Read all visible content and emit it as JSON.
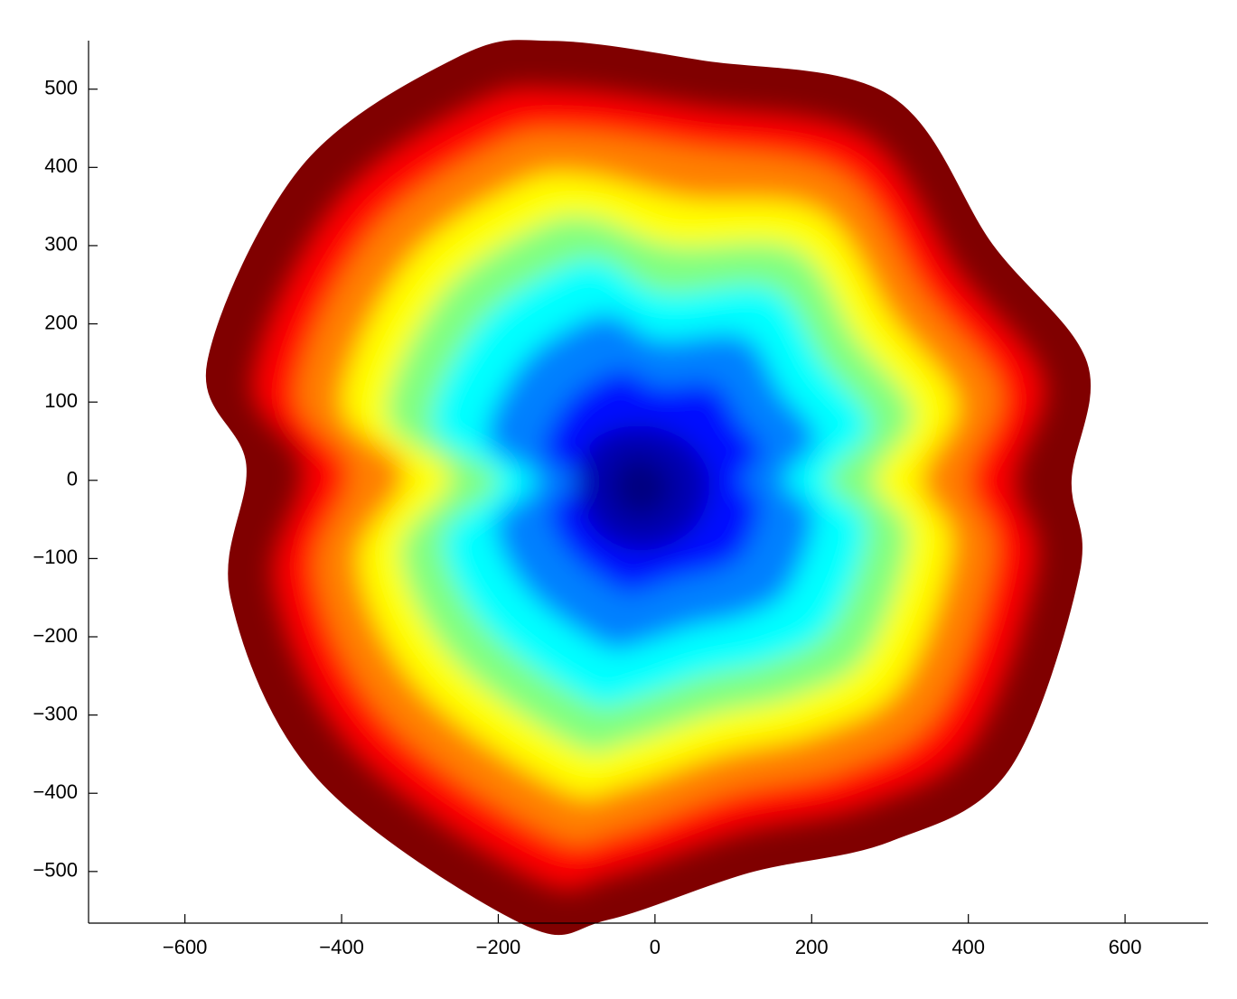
{
  "chart_data": {
    "type": "contour",
    "xlim": [
      -723,
      706
    ],
    "ylim": [
      -566,
      562
    ],
    "xticks": [
      {
        "value": -600,
        "label": "−600"
      },
      {
        "value": -400,
        "label": "−400"
      },
      {
        "value": -200,
        "label": "−200"
      },
      0,
      200,
      400,
      600
    ],
    "yticks": [
      {
        "value": -500,
        "label": "−500"
      },
      {
        "value": -400,
        "label": "−400"
      },
      {
        "value": -300,
        "label": "−300"
      },
      {
        "value": -200,
        "label": "−200"
      },
      {
        "value": -100,
        "label": "−100"
      },
      0,
      100,
      200,
      300,
      400,
      500
    ],
    "series": [
      {
        "color": "#800000",
        "x": [
          -130,
          60,
          300,
          430,
          550,
          530,
          540,
          450,
          300,
          120,
          -60,
          -170,
          -430,
          -540,
          -520,
          -570,
          -450,
          -250
        ],
        "y": [
          560,
          535,
          490,
          300,
          150,
          0,
          -120,
          -370,
          -460,
          -500,
          -560,
          -565,
          -380,
          -150,
          20,
          150,
          400,
          540
        ]
      },
      {
        "color": "#ff0000",
        "x": [
          -117,
          54,
          270,
          387,
          495,
          460,
          486,
          405,
          270,
          108,
          -54,
          -153,
          -387,
          -486,
          -450,
          -513,
          -405,
          -225
        ],
        "y": [
          500,
          478,
          438,
          268,
          130,
          0,
          -110,
          -335,
          -415,
          -450,
          -505,
          -510,
          -343,
          -135,
          15,
          130,
          358,
          485
        ]
      },
      {
        "color": "#ff8000",
        "x": [
          -104,
          48,
          240,
          344,
          440,
          400,
          432,
          360,
          240,
          96,
          -48,
          -136,
          -344,
          -432,
          -390,
          -456,
          -360,
          -200
        ],
        "y": [
          445,
          425,
          390,
          238,
          115,
          0,
          -98,
          -298,
          -370,
          -400,
          -450,
          -452,
          -305,
          -120,
          12,
          115,
          318,
          430
        ]
      },
      {
        "color": "#ffff00",
        "x": [
          -91,
          40,
          210,
          301,
          385,
          340,
          378,
          315,
          210,
          84,
          -42,
          -119,
          -301,
          -378,
          -320,
          -399,
          -315,
          -175
        ],
        "y": [
          390,
          360,
          343,
          210,
          100,
          0,
          -85,
          -260,
          -322,
          -350,
          -392,
          -395,
          -266,
          -105,
          10,
          100,
          280,
          378
        ]
      },
      {
        "color": "#80ff80",
        "x": [
          -78,
          20,
          180,
          258,
          330,
          280,
          324,
          270,
          180,
          72,
          -36,
          -102,
          -258,
          -324,
          -260,
          -342,
          -270,
          -150
        ],
        "y": [
          335,
          300,
          295,
          180,
          85,
          0,
          -73,
          -223,
          -276,
          -300,
          -336,
          -340,
          -228,
          -90,
          5,
          85,
          240,
          324
        ]
      },
      {
        "color": "#00ffff",
        "x": [
          -65,
          10,
          150,
          215,
          275,
          220,
          270,
          225,
          150,
          60,
          -30,
          -85,
          -215,
          -270,
          -200,
          -285,
          -225,
          -125
        ],
        "y": [
          280,
          240,
          245,
          150,
          70,
          0,
          -60,
          -186,
          -230,
          -250,
          -280,
          -283,
          -190,
          -75,
          0,
          70,
          200,
          270
        ]
      },
      {
        "color": "#0080ff",
        "x": [
          -49,
          5,
          113,
          161,
          206,
          165,
          203,
          169,
          113,
          45,
          -23,
          -64,
          -161,
          -203,
          -150,
          -214,
          -169,
          -94
        ],
        "y": [
          210,
          180,
          184,
          113,
          53,
          0,
          -45,
          -140,
          -173,
          -188,
          -210,
          -212,
          -143,
          -56,
          0,
          53,
          150,
          203
        ]
      },
      {
        "color": "#0010ff",
        "x": [
          -33,
          5,
          75,
          108,
          138,
          110,
          135,
          113,
          75,
          30,
          -15,
          -43,
          -108,
          -135,
          -100,
          -143,
          -113,
          -63
        ],
        "y": [
          140,
          120,
          123,
          75,
          35,
          0,
          -30,
          -93,
          -115,
          -125,
          -140,
          -142,
          -95,
          -38,
          0,
          35,
          100,
          135
        ]
      },
      {
        "color": "#0000b0",
        "x": [
          -20,
          40,
          70,
          50,
          -10,
          -70,
          -100,
          -80
        ],
        "y": [
          70,
          50,
          0,
          -60,
          -90,
          -70,
          -10,
          50
        ]
      },
      {
        "color": "#000080",
        "x": [
          -20,
          10,
          20,
          -5,
          -40,
          -55,
          -45
        ],
        "y": [
          30,
          15,
          -15,
          -45,
          -40,
          -10,
          20
        ]
      }
    ]
  }
}
